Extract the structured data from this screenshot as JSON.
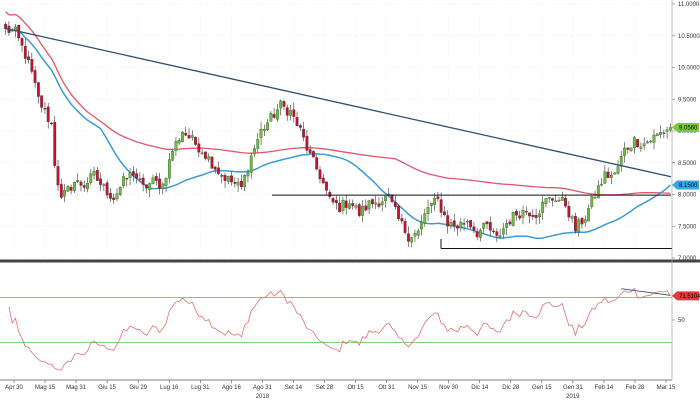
{
  "chart_data": {
    "type": "candlestick",
    "title": "",
    "xlabel": "",
    "ylabel": "",
    "grid": true,
    "price_axis": {
      "ylim": [
        7.0,
        11.0
      ],
      "ticks": [
        {
          "value": 7.0,
          "label": "7.0000"
        },
        {
          "value": 7.5,
          "label": "7.5000"
        },
        {
          "value": 8.0,
          "label": "8.0000"
        },
        {
          "value": 8.5,
          "label": "8.5000"
        },
        {
          "value": 9.0,
          "label": "9.0000"
        },
        {
          "value": 9.5,
          "label": "9.5000"
        },
        {
          "value": 10.0,
          "label": "10.0000"
        },
        {
          "value": 10.5,
          "label": "10.5000"
        },
        {
          "value": 11.0,
          "label": "11.0000"
        }
      ]
    },
    "x_axis": {
      "ticks": [
        "Apr 30",
        "Mag 15",
        "Mag 31",
        "Giu 15",
        "Giu 29",
        "Lug 16",
        "Lug 31",
        "Ago 16",
        "Ago 31",
        "Set 14",
        "Set 28",
        "Ott 15",
        "Ott 31",
        "Nov 15",
        "Nov 30",
        "Dic 14",
        "Dic 28",
        "Gen 15",
        "Gen 31",
        "Feb 14",
        "Feb 28",
        "Mar 15"
      ],
      "years": [
        {
          "label": "2018",
          "at_tick": "Ago 31"
        },
        {
          "label": "2019",
          "at_tick": "Gen 31"
        }
      ]
    },
    "close_key": [
      [
        0,
        10.6
      ],
      [
        3,
        10.55
      ],
      [
        6,
        10.2
      ],
      [
        8,
        9.9
      ],
      [
        10,
        9.5
      ],
      [
        12,
        9.3
      ],
      [
        14,
        9.1
      ],
      [
        15,
        8.5
      ],
      [
        16,
        8.2
      ],
      [
        17,
        7.9
      ],
      [
        18,
        8.0
      ],
      [
        21,
        8.2
      ],
      [
        24,
        8.15
      ],
      [
        27,
        8.3
      ],
      [
        30,
        8.1
      ],
      [
        33,
        7.95
      ],
      [
        36,
        8.2
      ],
      [
        39,
        8.35
      ],
      [
        42,
        8.1
      ],
      [
        45,
        8.2
      ],
      [
        48,
        8.15
      ],
      [
        51,
        8.7
      ],
      [
        54,
        9.0
      ],
      [
        57,
        8.85
      ],
      [
        60,
        8.7
      ],
      [
        63,
        8.5
      ],
      [
        66,
        8.3
      ],
      [
        69,
        8.2
      ],
      [
        72,
        8.1
      ],
      [
        75,
        8.6
      ],
      [
        78,
        9.0
      ],
      [
        81,
        9.2
      ],
      [
        84,
        9.4
      ],
      [
        87,
        9.3
      ],
      [
        90,
        9.0
      ],
      [
        93,
        8.6
      ],
      [
        96,
        8.3
      ],
      [
        99,
        7.9
      ],
      [
        102,
        7.8
      ],
      [
        105,
        7.9
      ],
      [
        108,
        7.7
      ],
      [
        111,
        7.85
      ],
      [
        114,
        7.9
      ],
      [
        117,
        7.95
      ],
      [
        120,
        7.6
      ],
      [
        123,
        7.35
      ],
      [
        126,
        7.4
      ],
      [
        129,
        7.8
      ],
      [
        132,
        7.9
      ],
      [
        135,
        7.55
      ],
      [
        138,
        7.5
      ],
      [
        141,
        7.6
      ],
      [
        144,
        7.4
      ],
      [
        147,
        7.5
      ],
      [
        150,
        7.3
      ],
      [
        153,
        7.55
      ],
      [
        156,
        7.7
      ],
      [
        159,
        7.75
      ],
      [
        162,
        7.7
      ],
      [
        165,
        7.9
      ],
      [
        168,
        7.95
      ],
      [
        171,
        7.85
      ],
      [
        174,
        7.45
      ],
      [
        177,
        7.65
      ],
      [
        180,
        8.0
      ],
      [
        183,
        8.3
      ],
      [
        186,
        8.3
      ],
      [
        189,
        8.7
      ],
      [
        192,
        8.85
      ],
      [
        195,
        8.8
      ],
      [
        198,
        8.9
      ],
      [
        201,
        9.0
      ],
      [
        203,
        9.06
      ]
    ],
    "price_badges": [
      {
        "label": "9.0560",
        "value": 9.056,
        "color": "#7ec83f"
      },
      {
        "label": "8.1500",
        "value": 8.15,
        "color": "#33a8e8"
      }
    ],
    "rsi": {
      "ylim": [
        0,
        100
      ],
      "tick": {
        "value": 50,
        "label": "50"
      },
      "upper_line": 70,
      "lower_line": 30,
      "badge": {
        "label": "71.5104",
        "value": 71.51,
        "color": "#e03c3c"
      }
    },
    "colors": {
      "bull": "#6bbf3a",
      "bear": "#c8102e",
      "ma_fast": "#3a9ad9",
      "ma_slow": "#e0566a",
      "trendline": "#2f4f6f",
      "support": "#111111",
      "rsi_line": "#e07070",
      "rsi_upper": "#e88080",
      "rsi_lower": "#6cc96c"
    }
  }
}
